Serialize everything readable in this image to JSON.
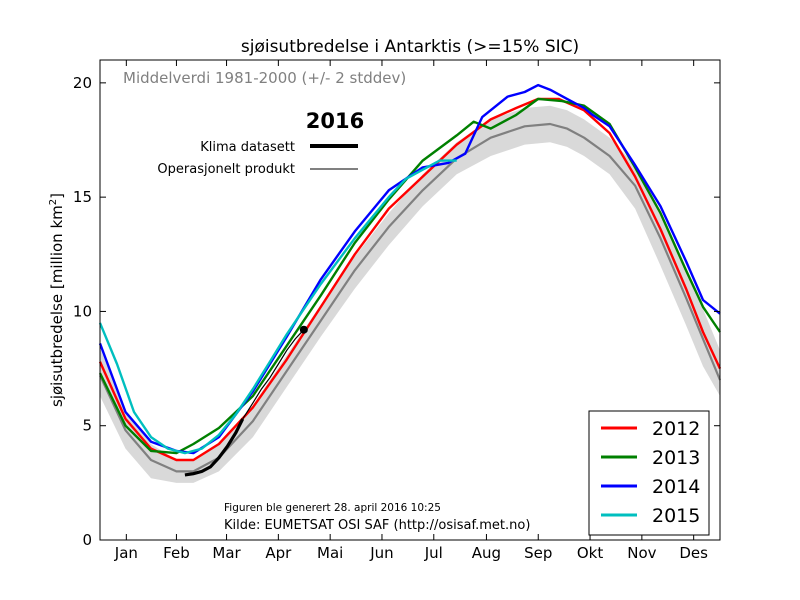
{
  "chart_data": {
    "type": "line",
    "title": "sjøisutbredelse i Antarktis (>=15% SIC)",
    "xlabel": "",
    "ylabel": "sjøisutbredelse [million km²]",
    "ylabel_main": "sjøisutbredelse [million km",
    "ylabel_sup": "2",
    "ylabel_end": "]",
    "xlim": [
      0,
      365
    ],
    "ylim": [
      0,
      21
    ],
    "grid": false,
    "x_ticks": [
      {
        "label": "Jan",
        "x": 15.5
      },
      {
        "label": "Feb",
        "x": 45
      },
      {
        "label": "Mar",
        "x": 74.5
      },
      {
        "label": "Apr",
        "x": 105
      },
      {
        "label": "Mai",
        "x": 135.5
      },
      {
        "label": "Jun",
        "x": 166
      },
      {
        "label": "Jul",
        "x": 196.5
      },
      {
        "label": "Aug",
        "x": 227.5
      },
      {
        "label": "Sep",
        "x": 258
      },
      {
        "label": "Okt",
        "x": 288.5
      },
      {
        "label": "Nov",
        "x": 319
      },
      {
        "label": "Des",
        "x": 349.5
      }
    ],
    "y_ticks": [
      0,
      5,
      10,
      15,
      20
    ],
    "mean_label": "Middelverdi 1981-2000 (+/- 2 stddev)",
    "mean_color": "#808080",
    "band_color": "#d9d9d9",
    "mean": {
      "x": [
        0,
        15,
        30,
        45,
        55,
        70,
        90,
        110,
        130,
        150,
        170,
        190,
        210,
        230,
        250,
        265,
        275,
        285,
        300,
        315,
        330,
        345,
        355,
        365
      ],
      "y": [
        7.2,
        4.8,
        3.5,
        3.0,
        3.0,
        3.6,
        5.2,
        7.4,
        9.6,
        11.8,
        13.7,
        15.3,
        16.7,
        17.6,
        18.1,
        18.2,
        18.0,
        17.6,
        16.8,
        15.5,
        13.2,
        10.6,
        8.8,
        7.0
      ]
    },
    "band_upper": [
      8.4,
      5.6,
      4.2,
      3.5,
      3.5,
      4.2,
      5.9,
      8.1,
      10.3,
      12.4,
      14.3,
      16.0,
      17.4,
      18.4,
      18.9,
      19.0,
      18.8,
      18.4,
      17.6,
      16.4,
      14.3,
      11.9,
      10.1,
      8.3
    ],
    "band_lower": [
      6.3,
      4.0,
      2.7,
      2.5,
      2.5,
      3.0,
      4.5,
      6.7,
      8.9,
      11.0,
      12.9,
      14.6,
      16.0,
      16.8,
      17.3,
      17.4,
      17.2,
      16.8,
      16.0,
      14.5,
      12.0,
      9.4,
      7.6,
      6.3
    ],
    "highlight_year": "2016",
    "legend_top": {
      "items": [
        {
          "label": "Klima datasett",
          "style": "thick",
          "color": "#000000"
        },
        {
          "label": "Operasjonelt produkt",
          "style": "thin",
          "color": "#000000"
        }
      ]
    },
    "series_2016_klima": {
      "name": "Klima datasett",
      "color": "#000000",
      "x": [
        50,
        55,
        60,
        65,
        70,
        75,
        80,
        84
      ],
      "y": [
        2.85,
        2.9,
        3.0,
        3.2,
        3.6,
        4.1,
        4.7,
        5.3
      ]
    },
    "series_2016_operasjonelt": {
      "name": "Operasjonelt produkt",
      "color": "#000000",
      "x": [
        84,
        90,
        95,
        100,
        105,
        110,
        115,
        120
      ],
      "y": [
        5.3,
        6.0,
        6.6,
        7.1,
        7.7,
        8.3,
        8.8,
        9.2
      ]
    },
    "series_2016_last_point": {
      "x": 120,
      "y": 9.2
    },
    "series": [
      {
        "name": "2012",
        "color": "#ff0000",
        "x": [
          0,
          15,
          30,
          45,
          55,
          70,
          90,
          110,
          130,
          150,
          170,
          190,
          210,
          230,
          245,
          258,
          270,
          285,
          300,
          315,
          330,
          345,
          355,
          365
        ],
        "y": [
          7.8,
          5.3,
          4.0,
          3.5,
          3.5,
          4.2,
          5.8,
          7.9,
          10.2,
          12.5,
          14.5,
          15.9,
          17.3,
          18.4,
          18.9,
          19.3,
          19.3,
          18.8,
          17.8,
          15.9,
          13.6,
          11.0,
          9.1,
          7.5
        ]
      },
      {
        "name": "2013",
        "color": "#008000",
        "x": [
          0,
          15,
          30,
          45,
          55,
          70,
          90,
          110,
          130,
          150,
          170,
          190,
          210,
          220,
          230,
          245,
          258,
          272,
          285,
          300,
          315,
          330,
          345,
          355,
          365
        ],
        "y": [
          7.3,
          5.0,
          3.9,
          3.8,
          4.2,
          4.9,
          6.3,
          8.5,
          10.7,
          13.0,
          14.9,
          16.6,
          17.7,
          18.3,
          18.0,
          18.6,
          19.3,
          19.2,
          19.0,
          18.2,
          16.3,
          14.3,
          11.8,
          10.2,
          9.1
        ]
      },
      {
        "name": "2014",
        "color": "#0000ff",
        "x": [
          0,
          15,
          30,
          45,
          55,
          70,
          90,
          110,
          130,
          150,
          170,
          190,
          205,
          215,
          225,
          240,
          250,
          258,
          265,
          275,
          285,
          290,
          300,
          315,
          330,
          345,
          355,
          365
        ],
        "y": [
          8.6,
          5.6,
          4.3,
          3.9,
          3.8,
          4.5,
          6.5,
          8.9,
          11.4,
          13.5,
          15.3,
          16.3,
          16.5,
          16.9,
          18.5,
          19.4,
          19.6,
          19.9,
          19.7,
          19.3,
          18.9,
          18.6,
          18.1,
          16.4,
          14.6,
          12.2,
          10.5,
          9.9
        ]
      },
      {
        "name": "2015",
        "color": "#00bfbf",
        "x": [
          0,
          10,
          20,
          30,
          40,
          50,
          60,
          70,
          80,
          90,
          100,
          110,
          120,
          130,
          140,
          150,
          160,
          170,
          180,
          190,
          200,
          210
        ],
        "y": [
          9.5,
          7.7,
          5.6,
          4.5,
          4.0,
          3.8,
          4.0,
          4.6,
          5.5,
          6.6,
          7.8,
          9.0,
          10.1,
          11.2,
          12.2,
          13.2,
          14.1,
          15.0,
          15.8,
          16.2,
          16.6,
          16.6
        ]
      }
    ],
    "legend": {
      "placement": "bottom-right",
      "items": [
        "2012",
        "2013",
        "2014",
        "2015"
      ]
    },
    "footer_line1": "Figuren ble generert 28. april 2016 10:25",
    "footer_line2": "Kilde: EUMETSAT OSI SAF (http://osisaf.met.no)"
  }
}
